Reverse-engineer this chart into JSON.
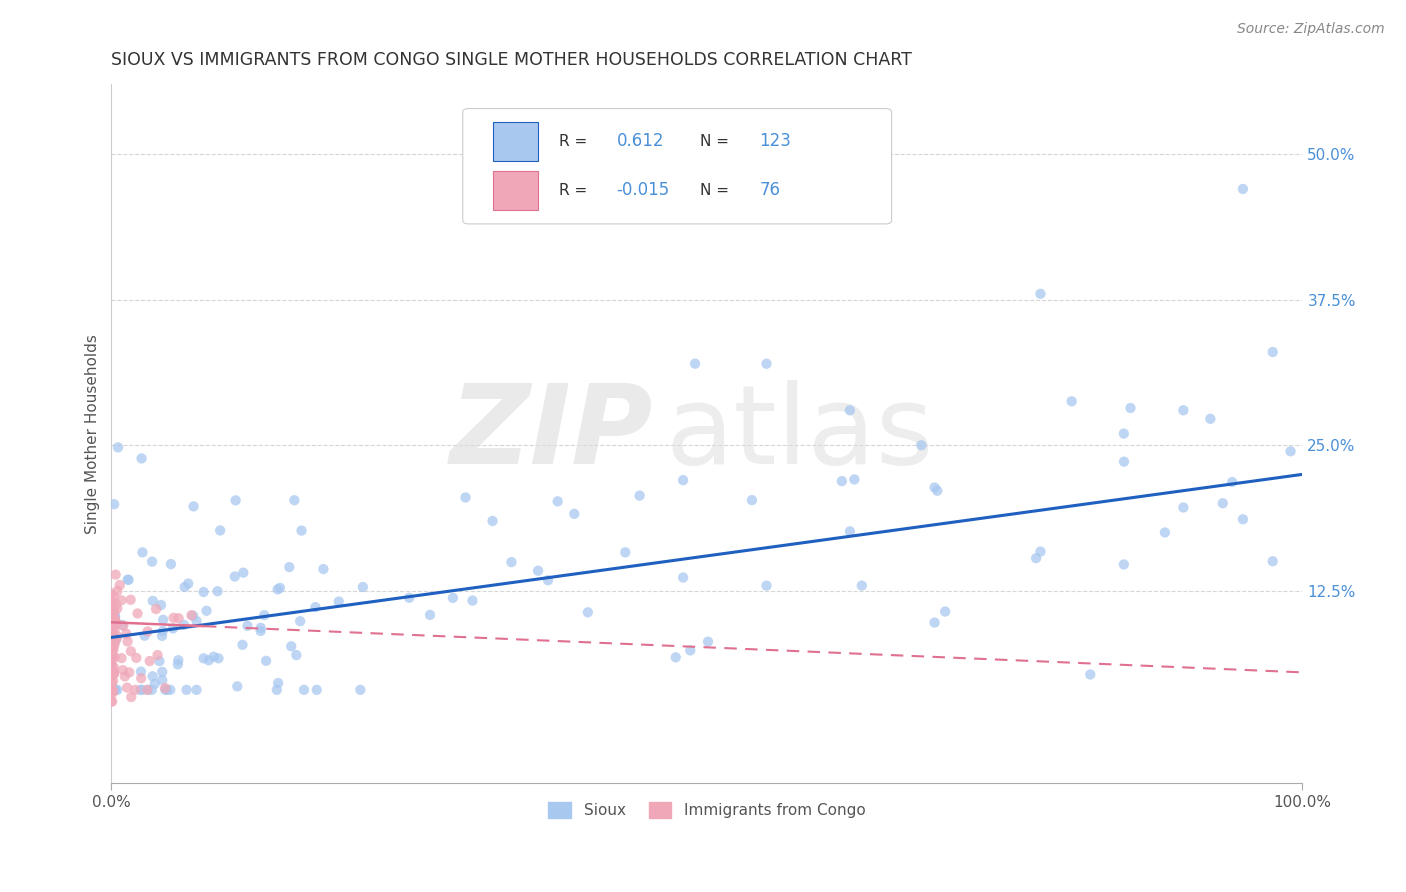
{
  "title": "SIOUX VS IMMIGRANTS FROM CONGO SINGLE MOTHER HOUSEHOLDS CORRELATION CHART",
  "source": "Source: ZipAtlas.com",
  "ylabel": "Single Mother Households",
  "yticks": [
    "12.5%",
    "25.0%",
    "37.5%",
    "50.0%"
  ],
  "ytick_vals": [
    0.125,
    0.25,
    0.375,
    0.5
  ],
  "legend_labels": [
    "Sioux",
    "Immigrants from Congo"
  ],
  "sioux_R": 0.612,
  "sioux_N": 123,
  "congo_R": -0.015,
  "congo_N": 76,
  "sioux_color": "#a8c8f0",
  "congo_color": "#f0a8b8",
  "sioux_line_color": "#2060c0",
  "congo_line_color": "#e07090",
  "title_color": "#333333",
  "stats_color": "#4a90d9",
  "background_color": "#ffffff",
  "xlim": [
    0.0,
    1.0
  ],
  "ylim": [
    -0.04,
    0.56
  ]
}
